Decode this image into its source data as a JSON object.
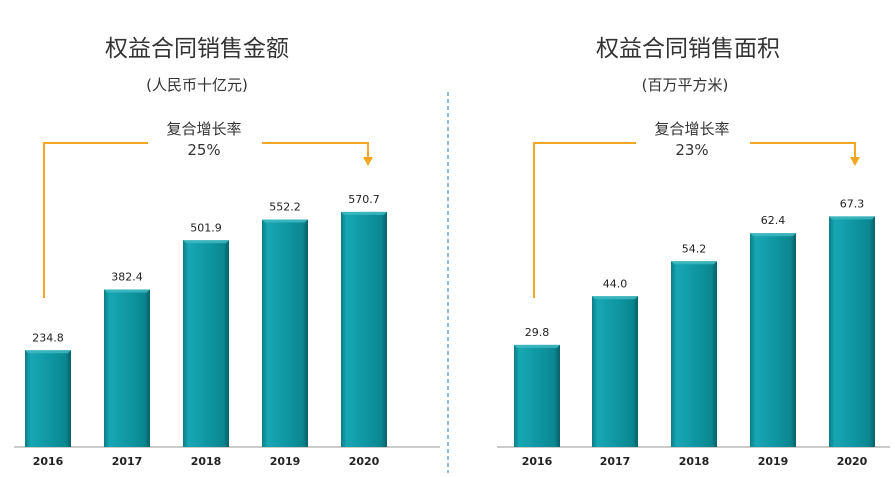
{
  "colors": {
    "bar": "#0F98A4",
    "bar_dark": "#0A6F78",
    "bar_light": "#3FB8C2",
    "arrow": "#F5A623",
    "divider": "#4A90C8",
    "axis": "#999999"
  },
  "chart_data": [
    {
      "type": "bar",
      "title": "权益合同销售金额",
      "subtitle": "(人民币十亿元)",
      "annotation": {
        "label": "复合增长率",
        "value": "25%"
      },
      "categories": [
        "2016",
        "2017",
        "2018",
        "2019",
        "2020"
      ],
      "values": [
        234.8,
        382.4,
        501.9,
        552.2,
        570.7
      ],
      "value_labels": [
        "234.8",
        "382.4",
        "501.9",
        "552.2",
        "570.7"
      ],
      "ylim": [
        0,
        600
      ]
    },
    {
      "type": "bar",
      "title": "权益合同销售面积",
      "subtitle": "(百万平方米)",
      "annotation": {
        "label": "复合增长率",
        "value": "23%"
      },
      "categories": [
        "2016",
        "2017",
        "2018",
        "2019",
        "2020"
      ],
      "values": [
        29.8,
        44.0,
        54.2,
        62.4,
        67.3
      ],
      "value_labels": [
        "29.8",
        "44.0",
        "54.2",
        "62.4",
        "67.3"
      ],
      "ylim": [
        0,
        70
      ]
    }
  ]
}
